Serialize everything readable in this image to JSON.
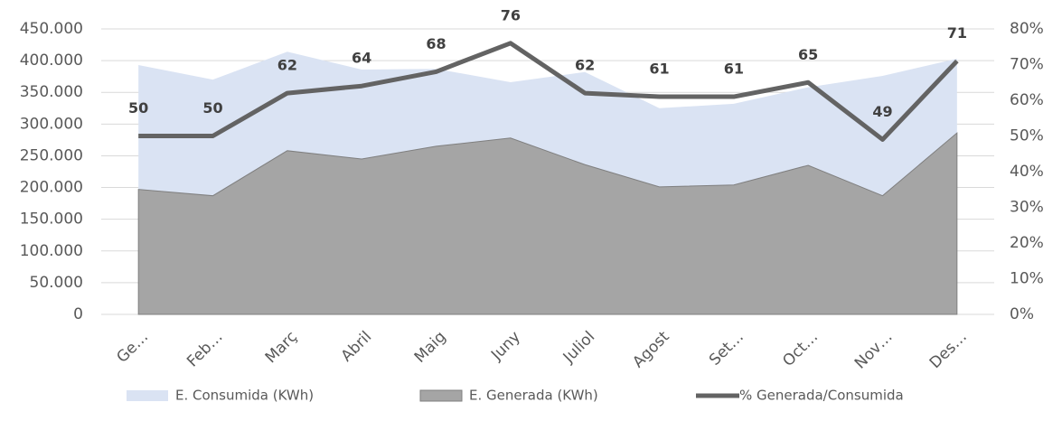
{
  "chart_data": {
    "type": "area-line",
    "categories": [
      "Ge…",
      "Feb…",
      "Març",
      "Abril",
      "Maig",
      "Juny",
      "Juliol",
      "Agost",
      "Set…",
      "Oct…",
      "Nov…",
      "Des…"
    ],
    "series": [
      {
        "name": "E. Consumida (KWh)",
        "color": "#dae3f3",
        "values": [
          393000,
          370000,
          414000,
          386000,
          387000,
          366000,
          382000,
          325000,
          332000,
          358000,
          376000,
          403000
        ]
      },
      {
        "name": "E. Generada (KWh)",
        "color": "#a5a5a5",
        "values": [
          197000,
          187000,
          258000,
          245000,
          265000,
          278000,
          236000,
          201000,
          204000,
          235000,
          187000,
          286000
        ]
      },
      {
        "name": "% Generada/Consumida",
        "color": "#636363",
        "axis": "y2",
        "values": [
          50,
          50,
          62,
          64,
          68,
          76,
          62,
          61,
          61,
          65,
          49,
          71
        ]
      }
    ],
    "ylim": [
      0,
      450000
    ],
    "yticks": [
      0,
      {
        "value": 50000,
        "label": "50.000"
      },
      {
        "value": 100000,
        "label": "100.000"
      },
      {
        "value": 150000,
        "label": "150.000"
      },
      {
        "value": 200000,
        "label": "200.000"
      },
      {
        "value": 250000,
        "label": "250.000"
      },
      {
        "value": 300000,
        "label": "300.000"
      },
      {
        "value": 350000,
        "label": "350.000"
      },
      {
        "value": 400000,
        "label": "400.000"
      },
      {
        "value": 450000,
        "label": "450.000"
      }
    ],
    "y2lim": [
      0,
      80
    ],
    "y2ticks": [
      {
        "value": 0,
        "label": "0%"
      },
      {
        "value": 10,
        "label": "10%"
      },
      {
        "value": 20,
        "label": "20%"
      },
      {
        "value": 30,
        "label": "30%"
      },
      {
        "value": 40,
        "label": "40%"
      },
      {
        "value": 50,
        "label": "50%"
      },
      {
        "value": 60,
        "label": "60%"
      },
      {
        "value": 70,
        "label": "70%"
      },
      {
        "value": 80,
        "label": "80%"
      }
    ],
    "grid": true,
    "legend": "bottom"
  }
}
